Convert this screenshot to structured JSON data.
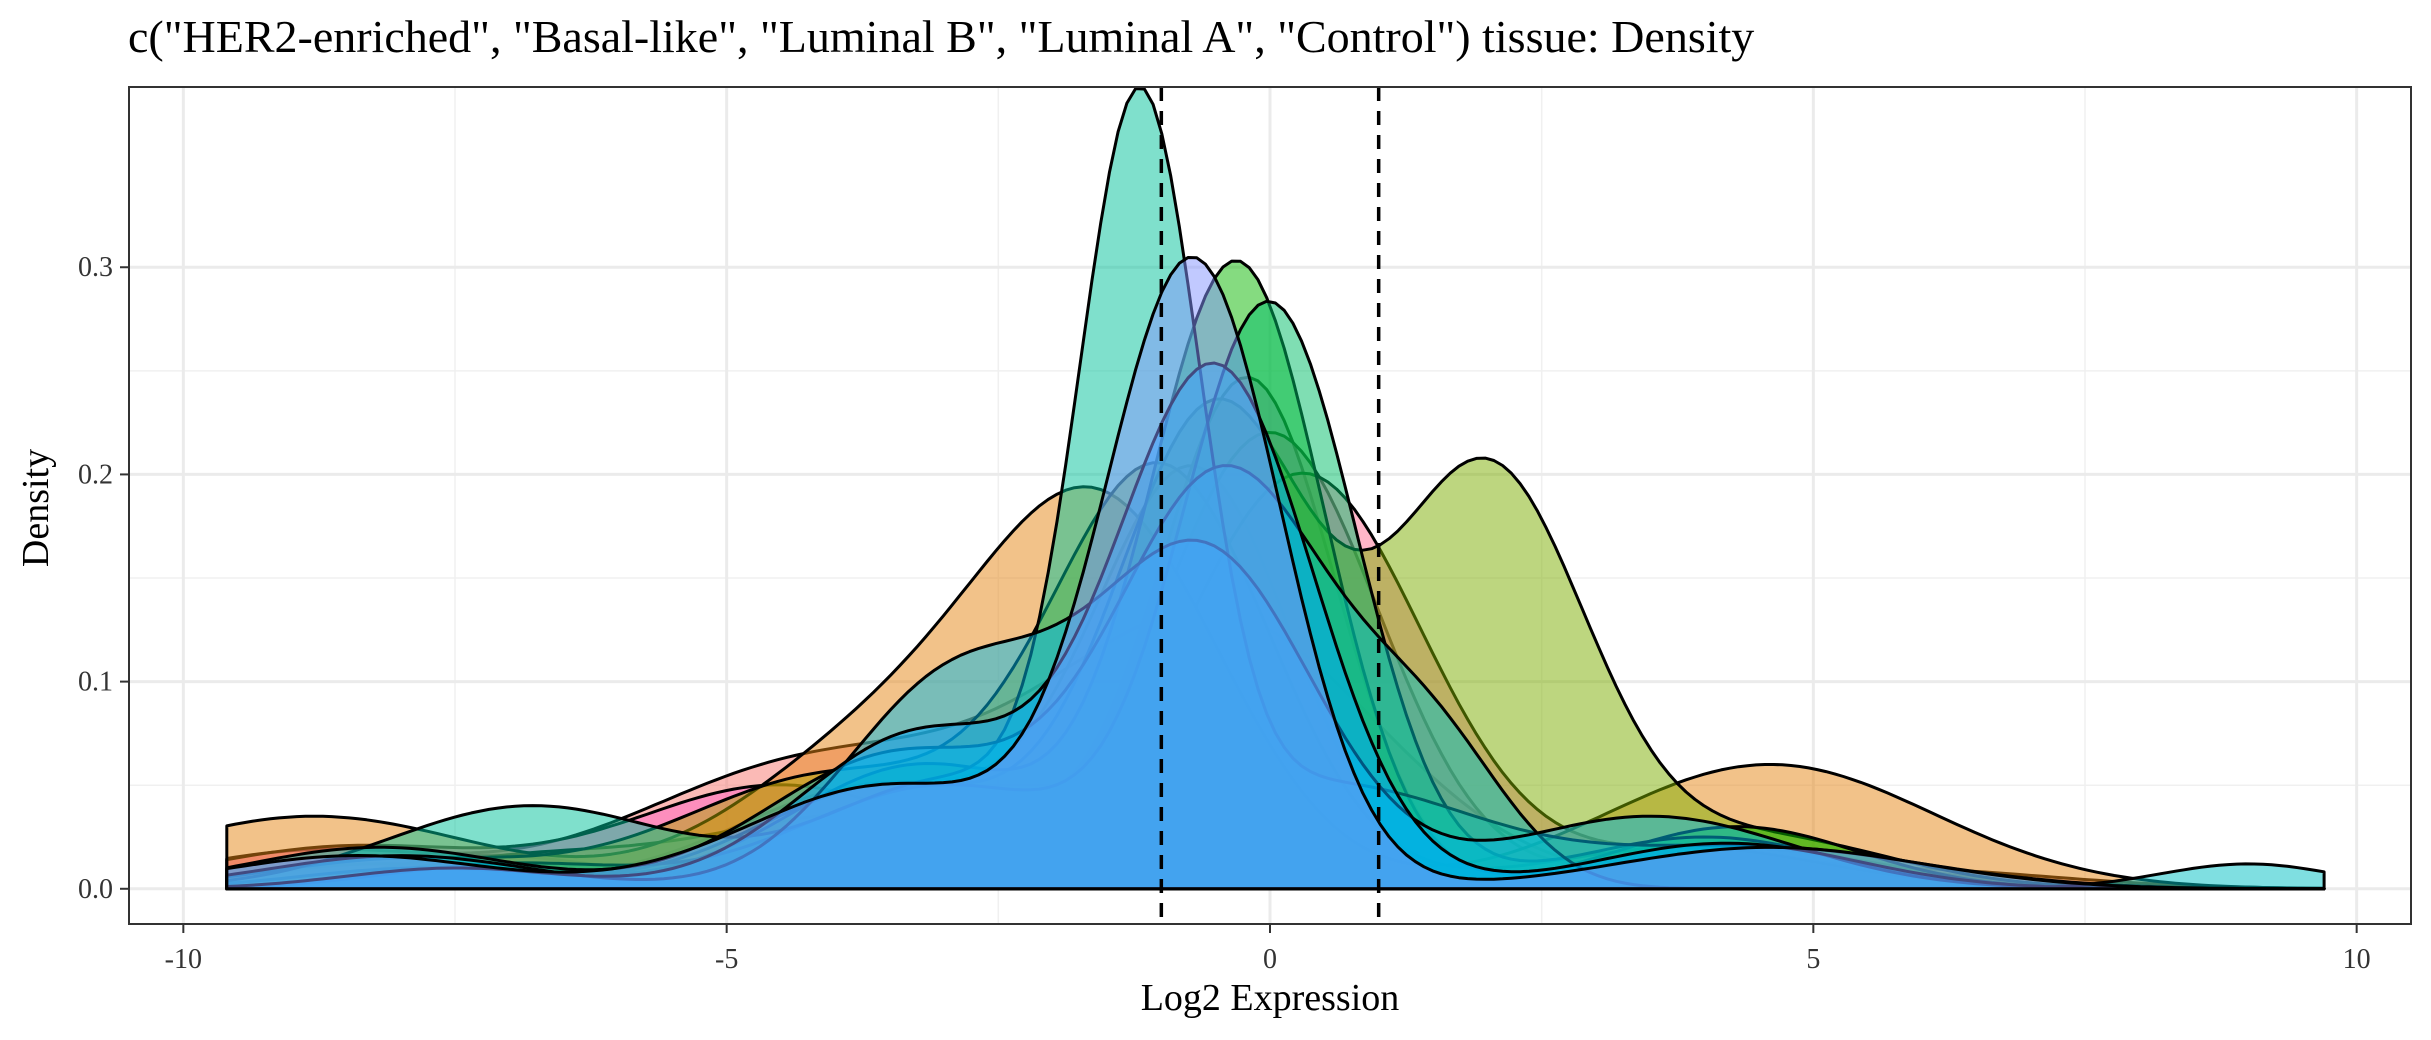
{
  "chart_data": {
    "type": "area",
    "title": "c(\"HER2-enriched\", \"Basal-like\", \"Luminal B\", \"Luminal A\", \"Control\") tissue: Density",
    "xlabel": "Log2 Expression",
    "ylabel": "Density",
    "xlim": [
      -10.5,
      10.5
    ],
    "ylim": [
      -0.017,
      0.387
    ],
    "x_ticks": [
      -10,
      -5,
      0,
      5,
      10
    ],
    "x_tick_labels": [
      "-10",
      "-5",
      "0",
      "5",
      "10"
    ],
    "y_ticks": [
      0.0,
      0.1,
      0.2,
      0.3
    ],
    "y_tick_labels": [
      "0.0",
      "0.1",
      "0.2",
      "0.3"
    ],
    "grid": true,
    "legend": "none",
    "reference_lines": [
      {
        "x": -1.0,
        "style": "dashed"
      },
      {
        "x": 1.0,
        "style": "dashed"
      }
    ],
    "x_range_of_curves": [
      -9.6,
      9.7
    ],
    "series": [
      {
        "color": "#f8766d",
        "params": [
          [
            0.018,
            -8.8,
            1.2
          ],
          [
            0.06,
            -4.2,
            1.6
          ],
          [
            0.13,
            -0.5,
            1.5
          ],
          [
            0.01,
            5.6,
            1.5
          ]
        ]
      },
      {
        "color": "#c77cff",
        "params": [
          [
            0.012,
            -8.2,
            1.1
          ],
          [
            0.05,
            -3.6,
            1.3
          ],
          [
            0.2,
            -0.7,
            0.9
          ],
          [
            0.018,
            4.0,
            1.1
          ]
        ]
      },
      {
        "color": "#e76bf3",
        "params": [
          [
            0.016,
            -7.2,
            1.0
          ],
          [
            0.045,
            -3.2,
            1.2
          ],
          [
            0.245,
            -0.2,
            0.8
          ],
          [
            0.012,
            4.6,
            1.2
          ]
        ]
      },
      {
        "color": "#ff61c3",
        "params": [
          [
            0.02,
            -8.5,
            1.3
          ],
          [
            0.05,
            -4.5,
            1.4
          ],
          [
            0.22,
            0.0,
            1.0
          ],
          [
            0.015,
            4.3,
            1.3
          ]
        ]
      },
      {
        "color": "#ff6c91",
        "params": [
          [
            0.015,
            -6.8,
            1.2
          ],
          [
            0.035,
            -3.8,
            1.3
          ],
          [
            0.2,
            0.3,
            1.1
          ],
          [
            0.02,
            4.2,
            1.4
          ]
        ]
      },
      {
        "color": "#e68613",
        "params": [
          [
            0.035,
            -8.8,
            1.5
          ],
          [
            0.07,
            -3.5,
            1.3
          ],
          [
            0.17,
            -1.5,
            1.1
          ],
          [
            0.06,
            4.6,
            1.5
          ]
        ]
      },
      {
        "color": "#aba300",
        "params": [
          [
            0.014,
            -8.0,
            1.2
          ],
          [
            0.055,
            -4.0,
            1.4
          ],
          [
            0.2,
            -1.0,
            1.0
          ],
          [
            0.02,
            3.8,
            1.3
          ]
        ]
      },
      {
        "color": "#7cae00",
        "params": [
          [
            0.01,
            -7.8,
            1.1
          ],
          [
            0.05,
            -3.5,
            1.2
          ],
          [
            0.23,
            -0.5,
            0.9
          ],
          [
            0.2,
            2.0,
            0.9
          ],
          [
            0.025,
            4.5,
            1.2
          ]
        ]
      },
      {
        "color": "#0cb702",
        "params": [
          [
            0.01,
            -7.5,
            1.0
          ],
          [
            0.06,
            -3.2,
            1.2
          ],
          [
            0.3,
            -0.3,
            0.8
          ],
          [
            0.03,
            4.3,
            1.1
          ]
        ]
      },
      {
        "color": "#00be67",
        "params": [
          [
            0.012,
            -7.0,
            1.1
          ],
          [
            0.05,
            -3.0,
            1.3
          ],
          [
            0.28,
            0.0,
            0.8
          ],
          [
            0.025,
            4.0,
            1.2
          ]
        ]
      },
      {
        "color": "#00c19a",
        "params": [
          [
            0.04,
            -6.8,
            1.3
          ],
          [
            0.05,
            -3.0,
            1.1
          ],
          [
            0.35,
            -1.2,
            0.55
          ],
          [
            0.05,
            0.5,
            1.4
          ],
          [
            0.02,
            4.5,
            1.5
          ]
        ]
      },
      {
        "color": "#00bfc4",
        "params": [
          [
            0.02,
            -8.2,
            1.2
          ],
          [
            0.065,
            -3.4,
            1.2
          ],
          [
            0.2,
            -0.4,
            1.0
          ],
          [
            0.06,
            1.5,
            0.7
          ],
          [
            0.012,
            9.0,
            0.8
          ]
        ]
      },
      {
        "color": "#00b8e7",
        "params": [
          [
            0.016,
            -8.0,
            1.2
          ],
          [
            0.1,
            -2.9,
            1.0
          ],
          [
            0.16,
            -0.6,
            1.0
          ],
          [
            0.035,
            3.5,
            1.3
          ]
        ]
      },
      {
        "color": "#00a9ff",
        "params": [
          [
            0.01,
            -7.5,
            1.0
          ],
          [
            0.075,
            -3.2,
            1.1
          ],
          [
            0.25,
            -0.5,
            0.9
          ],
          [
            0.022,
            4.2,
            1.2
          ]
        ]
      },
      {
        "color": "#8494ff",
        "params": [
          [
            0.016,
            -8.4,
            1.2
          ],
          [
            0.05,
            -3.5,
            1.3
          ],
          [
            0.3,
            -0.7,
            0.8
          ],
          [
            0.02,
            4.6,
            1.4
          ]
        ]
      }
    ]
  }
}
